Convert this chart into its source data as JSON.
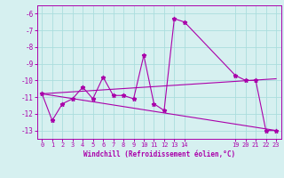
{
  "xlabel": "Windchill (Refroidissement éolien,°C)",
  "ylabel": "",
  "background_color": "#d6f0f0",
  "line_color": "#aa00aa",
  "grid_color": "#aadddd",
  "xlim": [
    -0.5,
    23.5
  ],
  "ylim": [
    -13.5,
    -5.5
  ],
  "yticks": [
    -6,
    -7,
    -8,
    -9,
    -10,
    -11,
    -12,
    -13
  ],
  "xticks": [
    0,
    1,
    2,
    3,
    4,
    5,
    6,
    7,
    8,
    9,
    10,
    11,
    12,
    13,
    14,
    19,
    20,
    21,
    22,
    23
  ],
  "series": [
    {
      "x": [
        0,
        1,
        2,
        3,
        4,
        5,
        6,
        7,
        8,
        9,
        10,
        11,
        12,
        13,
        14,
        19,
        20,
        21,
        22,
        23
      ],
      "y": [
        -10.8,
        -12.4,
        -11.4,
        -11.1,
        -10.4,
        -11.1,
        -9.8,
        -10.9,
        -10.9,
        -11.1,
        -8.5,
        -11.4,
        -11.8,
        -6.3,
        -6.5,
        -9.7,
        -10.0,
        -10.0,
        -13.0,
        -13.0
      ]
    },
    {
      "x": [
        0,
        23
      ],
      "y": [
        -10.8,
        -9.9
      ]
    },
    {
      "x": [
        0,
        23
      ],
      "y": [
        -10.8,
        -13.0
      ]
    }
  ]
}
